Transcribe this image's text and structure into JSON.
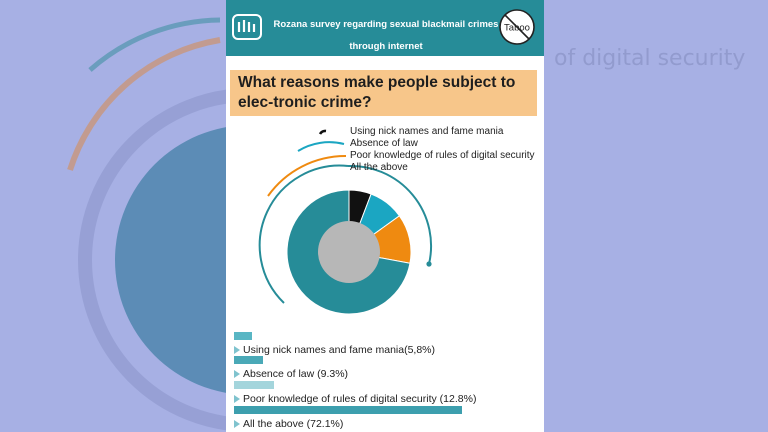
{
  "header": {
    "title": "Rozana survey regarding sexual blackmail crimes through internet",
    "badge": "Taboo"
  },
  "question": "What reasons make people subject to elec-tronic crime?",
  "chart_data": {
    "type": "pie",
    "categories": [
      "Using nick names and fame mania",
      "Absence of law",
      "Poor knowledge of rules of digital security",
      "All the above"
    ],
    "values": [
      5.8,
      9.3,
      12.8,
      72.1
    ],
    "colors": [
      "#111111",
      "#1ba6c2",
      "#ef8a10",
      "#268c98"
    ]
  },
  "bars": [
    {
      "label": "Using nick names and fame mania(5,8%)",
      "value": 5.8,
      "color": "#59b6c4"
    },
    {
      "label": "Absence of law (9.3%)",
      "value": 9.3,
      "color": "#4aa9b7"
    },
    {
      "label": "Poor knowledge of rules of digital security (12.8%)",
      "value": 12.8,
      "color": "#a4d5dc"
    },
    {
      "label": "All the above (72.1%)",
      "value": 72.1,
      "color": "#3d9fae"
    }
  ],
  "background": {
    "ghost_text": "of digital security"
  }
}
